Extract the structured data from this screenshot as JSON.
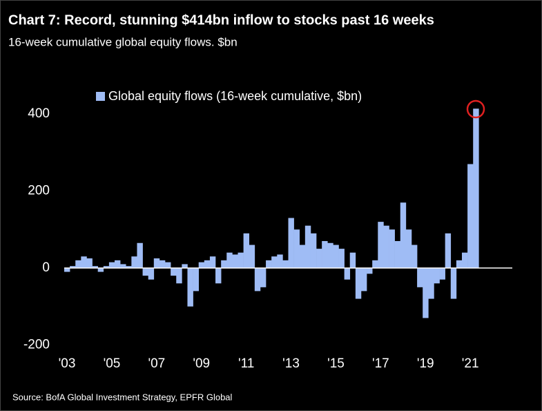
{
  "chart_data": {
    "type": "bar",
    "title": "Chart 7: Record, stunning $414bn inflow to stocks past 16 weeks",
    "subtitle": "16-week cumulative global equity flows. $bn",
    "source": "Source:  BofA Global Investment Strategy, EPFR Global",
    "categories": [
      "'03",
      null,
      null,
      null,
      null,
      null,
      null,
      null,
      "'05",
      null,
      null,
      null,
      null,
      null,
      null,
      null,
      "'07",
      null,
      null,
      null,
      null,
      null,
      null,
      null,
      "'09",
      null,
      null,
      null,
      null,
      null,
      null,
      null,
      "'11",
      null,
      null,
      null,
      null,
      null,
      null,
      null,
      "'13",
      null,
      null,
      null,
      null,
      null,
      null,
      null,
      "'15",
      null,
      null,
      null,
      null,
      null,
      null,
      null,
      "'17",
      null,
      null,
      null,
      null,
      null,
      null,
      null,
      "'19",
      null,
      null,
      null,
      null,
      null,
      null,
      null,
      "'21",
      null,
      null,
      null,
      null,
      null,
      null,
      null
    ],
    "series": [
      {
        "name": "Global equity flows (16-week cumulative, $bn)",
        "color": "#9fbcf5",
        "values": [
          -10,
          5,
          20,
          30,
          25,
          5,
          -10,
          5,
          15,
          20,
          10,
          5,
          30,
          65,
          -20,
          -30,
          25,
          20,
          15,
          -20,
          -40,
          10,
          -100,
          -60,
          15,
          20,
          30,
          -40,
          20,
          40,
          35,
          40,
          90,
          60,
          -60,
          -50,
          20,
          30,
          35,
          20,
          130,
          100,
          60,
          110,
          90,
          50,
          70,
          65,
          60,
          50,
          -30,
          40,
          -80,
          -60,
          -15,
          20,
          120,
          110,
          100,
          70,
          170,
          100,
          60,
          -50,
          -130,
          -80,
          -40,
          -30,
          90,
          -80,
          20,
          40,
          270,
          414,
          null,
          null,
          null,
          null,
          null,
          null
        ]
      }
    ],
    "ylim": [
      -219,
      463
    ],
    "yticks": [
      -200,
      0,
      200,
      400
    ]
  }
}
